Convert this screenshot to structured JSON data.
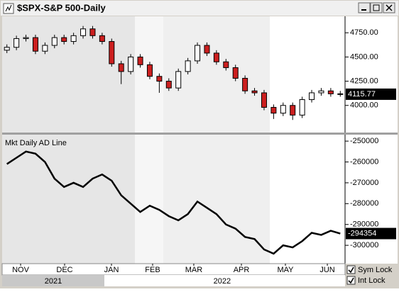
{
  "window_title": "$SPX-S&P 500-Daily",
  "controls": [
    {
      "label": "Sym Lock",
      "checked": true
    },
    {
      "label": "Int Lock",
      "checked": true
    }
  ],
  "chart_data": [
    {
      "type": "candlestick",
      "xlim": [
        0,
        36
      ],
      "open": [
        4570,
        4600,
        4690,
        4700,
        4560,
        4620,
        4700,
        4660,
        4720,
        4790,
        4720,
        4660,
        4430,
        4350,
        4500,
        4420,
        4300,
        4250,
        4180,
        4350,
        4460,
        4620,
        4540,
        4450,
        4390,
        4280,
        4150,
        4130,
        3980,
        3920,
        4000,
        3900,
        4060,
        4130,
        4150,
        4120
      ],
      "high": [
        4630,
        4720,
        4730,
        4730,
        4650,
        4730,
        4730,
        4750,
        4820,
        4820,
        4750,
        4690,
        4460,
        4530,
        4530,
        4450,
        4330,
        4280,
        4380,
        4490,
        4650,
        4650,
        4570,
        4480,
        4420,
        4310,
        4180,
        4160,
        4010,
        4030,
        4030,
        4090,
        4160,
        4180,
        4180,
        4150
      ],
      "low": [
        4540,
        4570,
        4660,
        4530,
        4530,
        4590,
        4630,
        4630,
        4690,
        4690,
        4630,
        4400,
        4220,
        4320,
        4390,
        4270,
        4130,
        4150,
        4150,
        4320,
        4430,
        4510,
        4420,
        4360,
        4250,
        4120,
        4100,
        3950,
        3860,
        3890,
        3850,
        3870,
        4030,
        4100,
        4090,
        4090
      ],
      "close": [
        4600,
        4690,
        4700,
        4560,
        4620,
        4700,
        4660,
        4720,
        4790,
        4720,
        4660,
        4430,
        4350,
        4500,
        4420,
        4300,
        4250,
        4180,
        4350,
        4460,
        4620,
        4540,
        4450,
        4390,
        4280,
        4150,
        4130,
        3980,
        3920,
        4000,
        3900,
        4060,
        4130,
        4150,
        4120,
        4115.77
      ],
      "up_color": "#ffffff",
      "down_color": "#cc1f1f",
      "last_value": 4115.77,
      "ylim": [
        3720,
        4920
      ],
      "yticks": [
        {
          "value": 4000,
          "label": "4000.00"
        },
        {
          "value": 4250,
          "label": "4250.00"
        },
        {
          "value": 4500,
          "label": "4500.00"
        },
        {
          "value": 4750,
          "label": "4750.00"
        }
      ]
    },
    {
      "type": "line",
      "title": "Mkt Daily AD Line",
      "xlim": [
        0,
        36
      ],
      "values": [
        -261000,
        -258000,
        -255000,
        -256000,
        -260000,
        -268000,
        -272000,
        -270000,
        -272000,
        -268000,
        -266000,
        -269000,
        -276000,
        -280000,
        -284000,
        -281000,
        -283000,
        -286000,
        -288000,
        -285000,
        -279000,
        -282000,
        -285000,
        -290000,
        -292000,
        -296000,
        -297000,
        -302000,
        -304000,
        -300000,
        -301000,
        -298000,
        -294000,
        -295000,
        -293000,
        -294354
      ],
      "color": "#000000",
      "last_value": -294354,
      "ylim": [
        -308800,
        -246900
      ],
      "yticks": [
        -250000,
        -260000,
        -270000,
        -280000,
        -290000,
        -300000
      ],
      "xticks": [
        {
          "value": 1.94,
          "label": "NOV"
        },
        {
          "value": 6.56,
          "label": "DEC"
        },
        {
          "value": 11.48,
          "label": "JAN"
        },
        {
          "value": 15.8,
          "label": "FEB"
        },
        {
          "value": 20.12,
          "label": "MAR"
        },
        {
          "value": 25.12,
          "label": "APR"
        },
        {
          "value": 29.74,
          "label": "MAY"
        },
        {
          "value": 34.14,
          "label": "JUN"
        }
      ],
      "year_ticks": [
        {
          "value": 5.37,
          "label": "2021"
        },
        {
          "value": 23.1,
          "label": "2022"
        }
      ]
    }
  ]
}
